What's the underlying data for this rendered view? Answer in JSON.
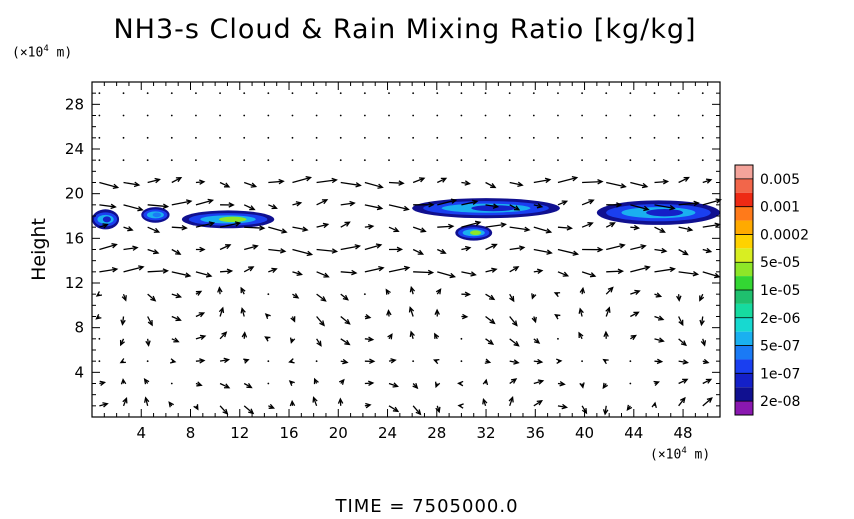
{
  "chart_data": {
    "type": "heatmap",
    "title": "NH3-s Cloud & Rain Mixing Ratio [kg/kg]",
    "ylabel": "Height",
    "xunit_prefix": "(×10",
    "xunit_exp": "4",
    "xunit_suffix": " m)",
    "yunit_prefix": "(×10",
    "yunit_exp": "4",
    "yunit_suffix": " m)",
    "xlim": [
      0,
      51
    ],
    "ylim": [
      0,
      30
    ],
    "xticks": [
      4,
      8,
      12,
      16,
      20,
      24,
      28,
      32,
      36,
      40,
      44,
      48
    ],
    "yticks": [
      4,
      8,
      12,
      16,
      20,
      24,
      28
    ],
    "colorbar": {
      "labels": [
        "0.005",
        "0.001",
        "0.0002",
        "5e-05",
        "1e-05",
        "2e-06",
        "5e-07",
        "1e-07",
        "2e-08"
      ],
      "colors": [
        "#f4a39a",
        "#f2664a",
        "#ee2a14",
        "#ff7a1a",
        "#ffaa00",
        "#ffd200",
        "#d8ee22",
        "#8ee628",
        "#33d633",
        "#1fc06e",
        "#16dba0",
        "#17d9d0",
        "#1ab0f0",
        "#1a7af5",
        "#1a3ff0",
        "#1420c8",
        "#101090",
        "#8a18b0"
      ]
    },
    "cloud_regions": [
      {
        "x": [
          0,
          2.2
        ],
        "y": [
          16.8,
          18.6
        ],
        "level": "1e-07"
      },
      {
        "x": [
          4,
          6.3
        ],
        "y": [
          17.4,
          18.8
        ],
        "level": "5e-07"
      },
      {
        "x": [
          7.3,
          14.8
        ],
        "y": [
          16.9,
          18.5
        ],
        "level": "5e-05"
      },
      {
        "x": [
          26,
          38
        ],
        "y": [
          17.8,
          19.6
        ],
        "level": "1e-07"
      },
      {
        "x": [
          29.5,
          32.5
        ],
        "y": [
          15.8,
          17.2
        ],
        "level": "5e-05"
      },
      {
        "x": [
          41,
          51
        ],
        "y": [
          17.2,
          19.4
        ],
        "level": "1e-07"
      }
    ]
  },
  "time_label": "TIME  =  7505000.0"
}
